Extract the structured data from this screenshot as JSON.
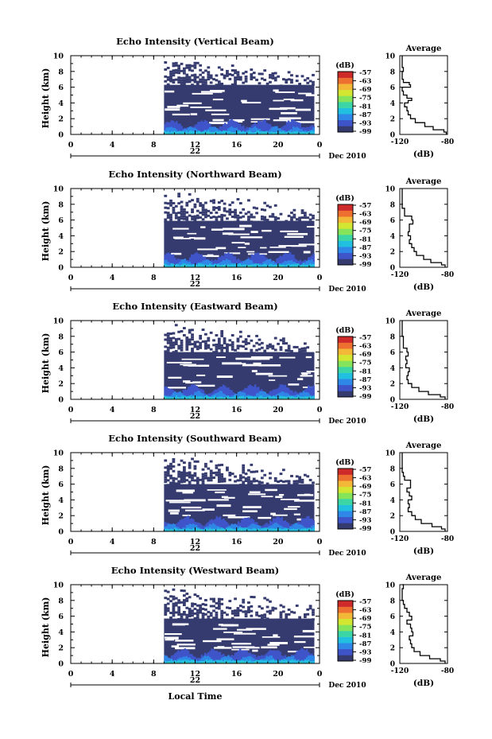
{
  "figure": {
    "ylabel": "Height (km)",
    "xlabel": "Local Time",
    "date_label": "Dec 2010",
    "day_label": "22",
    "cbar_unit": "(dB)",
    "avg_title": "Average",
    "avg_xlabel": "(dB)",
    "palette": [
      "#353b6e",
      "#3e54c8",
      "#2f88e8",
      "#21c0e0",
      "#3cd6a6",
      "#86e45a",
      "#d2e632",
      "#f4b838",
      "#ee7030",
      "#cf2a2a"
    ]
  },
  "chart_data": [
    {
      "type": "heatmap",
      "title": "Echo Intensity (Vertical Beam)",
      "xlabel": "Local Time",
      "ylabel": "Height (km)",
      "xlim": [
        0,
        24
      ],
      "ylim": [
        0,
        10
      ],
      "xticks": [
        "0",
        "4",
        "8",
        "12",
        "16",
        "20",
        "0"
      ],
      "yticks": [
        "0",
        "2",
        "4",
        "6",
        "8",
        "10"
      ],
      "data_start_hour": 9,
      "data_end_hour": 23.5,
      "cloud_top_km": 6.3,
      "sparse_top_km": 9.5,
      "colorbar": {
        "label": "(dB)",
        "ticks": [
          "-57",
          "-63",
          "-69",
          "-75",
          "-81",
          "-87",
          "-93",
          "-99"
        ]
      },
      "average": {
        "title": "Average",
        "xlabel": "(dB)",
        "xlim": [
          -120,
          -80
        ],
        "xticks": [
          "-120",
          "-80"
        ],
        "height_km": [
          0,
          0.3,
          0.6,
          1,
          1.5,
          2,
          2.5,
          3,
          3.5,
          4,
          4.3,
          4.6,
          5,
          5.5,
          6,
          6.3,
          6.6,
          7,
          7.5,
          8,
          8.5,
          9,
          9.5,
          10
        ],
        "value_db": [
          -81,
          -83,
          -92,
          -99,
          -107,
          -111,
          -113,
          -114,
          -116,
          -113,
          -110,
          -114,
          -117,
          -118,
          -111,
          -112,
          -117,
          -118,
          -118,
          -117,
          -118,
          -118,
          -118,
          -118
        ]
      }
    },
    {
      "type": "heatmap",
      "title": "Echo Intensity (Northward Beam)",
      "xlabel": "Local Time",
      "ylabel": "Height (km)",
      "xlim": [
        0,
        24
      ],
      "ylim": [
        0,
        10
      ],
      "xticks": [
        "0",
        "4",
        "8",
        "12",
        "16",
        "20",
        "0"
      ],
      "yticks": [
        "0",
        "2",
        "4",
        "6",
        "8",
        "10"
      ],
      "data_start_hour": 9,
      "data_end_hour": 23.5,
      "cloud_top_km": 5.9,
      "sparse_top_km": 9.5,
      "colorbar": {
        "label": "(dB)",
        "ticks": [
          "-57",
          "-63",
          "-69",
          "-75",
          "-81",
          "-87",
          "-93",
          "-99"
        ]
      },
      "average": {
        "title": "Average",
        "xlabel": "(dB)",
        "xlim": [
          -120,
          -80
        ],
        "xticks": [
          "-120",
          "-80"
        ],
        "height_km": [
          0,
          0.3,
          0.6,
          1,
          1.5,
          2,
          2.5,
          3,
          3.5,
          4,
          4.5,
          5,
          5.5,
          6,
          6.5,
          7,
          7.5,
          8,
          8.5,
          9,
          9.5,
          10
        ],
        "value_db": [
          -82,
          -85,
          -94,
          -100,
          -106,
          -108,
          -110,
          -112,
          -111,
          -113,
          -112,
          -112,
          -109,
          -110,
          -116,
          -116,
          -118,
          -118,
          -118,
          -118,
          -118,
          -118
        ]
      }
    },
    {
      "type": "heatmap",
      "title": "Echo Intensity (Eastward Beam)",
      "xlabel": "Local Time",
      "ylabel": "Height (km)",
      "xlim": [
        0,
        24
      ],
      "ylim": [
        0,
        10
      ],
      "xticks": [
        "0",
        "4",
        "8",
        "12",
        "16",
        "20",
        "0"
      ],
      "yticks": [
        "0",
        "2",
        "4",
        "6",
        "8",
        "10"
      ],
      "data_start_hour": 9,
      "data_end_hour": 23.5,
      "cloud_top_km": 6.0,
      "sparse_top_km": 9.5,
      "colorbar": {
        "label": "(dB)",
        "ticks": [
          "-57",
          "-63",
          "-69",
          "-75",
          "-81",
          "-87",
          "-93",
          "-99"
        ]
      },
      "average": {
        "title": "Average",
        "xlabel": "(dB)",
        "xlim": [
          -120,
          -80
        ],
        "xticks": [
          "-120",
          "-80"
        ],
        "height_km": [
          0,
          0.3,
          0.6,
          1,
          1.5,
          2,
          2.5,
          3,
          3.5,
          4,
          4.5,
          5,
          5.5,
          6,
          6.5,
          7,
          7.5,
          8,
          8.5,
          9,
          9.5,
          10
        ],
        "value_db": [
          -82,
          -86,
          -96,
          -104,
          -110,
          -113,
          -114,
          -113,
          -112,
          -115,
          -114,
          -115,
          -113,
          -114,
          -117,
          -117,
          -117,
          -118,
          -118,
          -118,
          -118,
          -118
        ]
      }
    },
    {
      "type": "heatmap",
      "title": "Echo Intensity (Southward Beam)",
      "xlabel": "Local Time",
      "ylabel": "Height (km)",
      "xlim": [
        0,
        24
      ],
      "ylim": [
        0,
        10
      ],
      "xticks": [
        "0",
        "4",
        "8",
        "12",
        "16",
        "20",
        "0"
      ],
      "yticks": [
        "0",
        "2",
        "4",
        "6",
        "8",
        "10"
      ],
      "data_start_hour": 9,
      "data_end_hour": 23.5,
      "cloud_top_km": 6.0,
      "sparse_top_km": 9.5,
      "colorbar": {
        "label": "(dB)",
        "ticks": [
          "-57",
          "-63",
          "-69",
          "-75",
          "-81",
          "-87",
          "-93",
          "-99"
        ]
      },
      "average": {
        "title": "Average",
        "xlabel": "(dB)",
        "xlim": [
          -120,
          -80
        ],
        "xticks": [
          "-120",
          "-80"
        ],
        "height_km": [
          0,
          0.3,
          0.6,
          1,
          1.5,
          2,
          2.5,
          3,
          3.5,
          4,
          4.5,
          5,
          5.5,
          6,
          6.5,
          7,
          7.5,
          8,
          8.5,
          9,
          9.5,
          10
        ],
        "value_db": [
          -82,
          -85,
          -93,
          -102,
          -107,
          -110,
          -113,
          -112,
          -113,
          -110,
          -112,
          -114,
          -111,
          -111,
          -116,
          -117,
          -118,
          -118,
          -118,
          -118,
          -118,
          -118
        ]
      }
    },
    {
      "type": "heatmap",
      "title": "Echo Intensity (Westward Beam)",
      "xlabel": "Local Time",
      "ylabel": "Height (km)",
      "xlim": [
        0,
        24
      ],
      "ylim": [
        0,
        10
      ],
      "xticks": [
        "0",
        "4",
        "8",
        "12",
        "16",
        "20",
        "0"
      ],
      "yticks": [
        "0",
        "2",
        "4",
        "6",
        "8",
        "10"
      ],
      "data_start_hour": 9,
      "data_end_hour": 23.5,
      "cloud_top_km": 5.7,
      "sparse_top_km": 9.5,
      "colorbar": {
        "label": "(dB)",
        "ticks": [
          "-57",
          "-63",
          "-69",
          "-75",
          "-81",
          "-87",
          "-93",
          "-99"
        ]
      },
      "average": {
        "title": "Average",
        "xlabel": "(dB)",
        "xlim": [
          -120,
          -80
        ],
        "xticks": [
          "-120",
          "-80"
        ],
        "height_km": [
          0,
          0.3,
          0.6,
          1,
          1.5,
          2,
          2.5,
          3,
          3.5,
          4,
          4.5,
          5,
          5.5,
          6,
          6.5,
          7,
          7.5,
          8,
          8.5,
          9,
          9.5,
          10
        ],
        "value_db": [
          -82,
          -86,
          -95,
          -103,
          -108,
          -110,
          -111,
          -112,
          -109,
          -110,
          -111,
          -114,
          -110,
          -112,
          -114,
          -116,
          -117,
          -118,
          -118,
          -118,
          -117,
          -118
        ]
      }
    }
  ]
}
